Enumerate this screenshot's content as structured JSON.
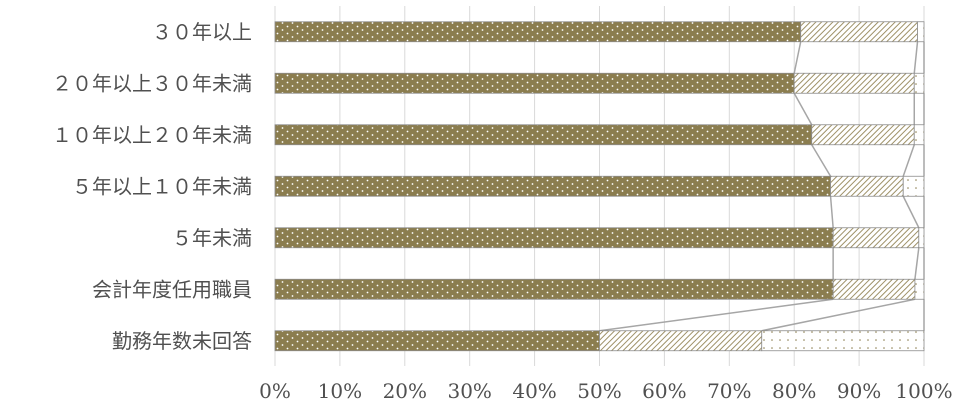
{
  "chart_data": {
    "type": "bar",
    "orientation": "horizontal",
    "stacked": "percent",
    "title": "",
    "xlabel": "",
    "ylabel": "",
    "xlim": [
      0,
      100
    ],
    "x_ticks": [
      "0%",
      "10%",
      "20%",
      "30%",
      "40%",
      "50%",
      "60%",
      "70%",
      "80%",
      "90%",
      "100%"
    ],
    "grid": "vertical",
    "legend": "none",
    "series_lines": true,
    "categories": [
      "３０年以上",
      "２０年以上３０年未満",
      "１０年以上２０年未満",
      "５年以上１０年未満",
      "５年未満",
      "会計年度任用職員",
      "勤務年数未回答"
    ],
    "series": [
      {
        "values": [
          81.0,
          80.0,
          82.7,
          85.6,
          86.0,
          86.0,
          50.0
        ],
        "color": "#8b7d4f",
        "pattern": "dots"
      },
      {
        "values": [
          18.0,
          18.5,
          15.8,
          11.2,
          13.2,
          12.6,
          25.0
        ],
        "color": "#b5a878",
        "pattern": "diagonal-hatch"
      },
      {
        "values": [
          1.0,
          1.5,
          1.5,
          3.2,
          0.8,
          1.4,
          25.0
        ],
        "color": "#efece2",
        "pattern": "sparse-dots"
      }
    ]
  }
}
